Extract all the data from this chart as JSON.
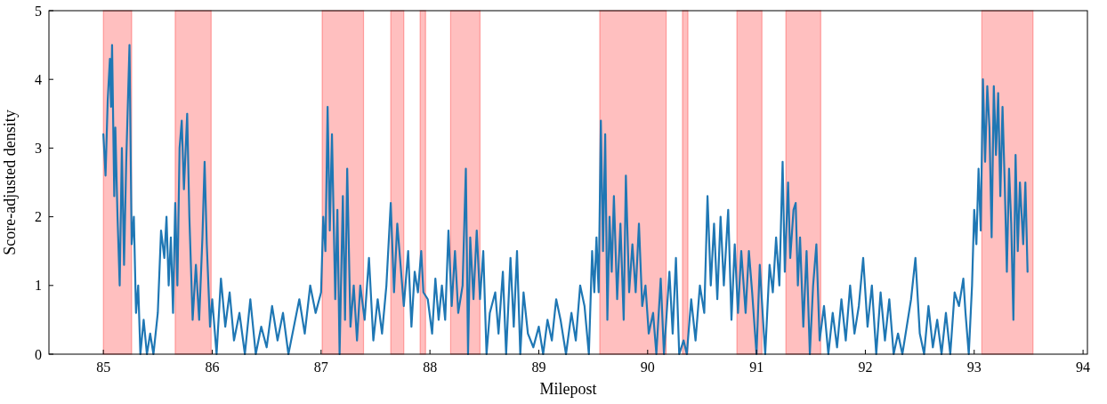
{
  "chart_data": {
    "type": "line",
    "xlabel": "Milepost",
    "ylabel": "Score-adjusted density",
    "xlim": [
      84.5,
      94.04
    ],
    "ylim": [
      0,
      5
    ],
    "xticks": [
      85,
      86,
      87,
      88,
      89,
      90,
      91,
      92,
      93,
      94
    ],
    "yticks": [
      0,
      1,
      2,
      3,
      4,
      5
    ],
    "grid": false,
    "marker": "none",
    "line_style": "solid",
    "series": [
      {
        "color": "#1f77b4",
        "x": [
          85.0,
          85.02,
          85.04,
          85.06,
          85.07,
          85.08,
          85.1,
          85.11,
          85.13,
          85.15,
          85.17,
          85.19,
          85.21,
          85.24,
          85.26,
          85.28,
          85.3,
          85.32,
          85.34,
          85.37,
          85.4,
          85.43,
          85.46,
          85.5,
          85.53,
          85.56,
          85.58,
          85.6,
          85.62,
          85.64,
          85.66,
          85.68,
          85.7,
          85.72,
          85.74,
          85.77,
          85.79,
          85.82,
          85.85,
          85.88,
          85.91,
          85.93,
          85.95,
          85.98,
          86.0,
          86.04,
          86.08,
          86.12,
          86.16,
          86.2,
          86.25,
          86.3,
          86.35,
          86.4,
          86.45,
          86.5,
          86.55,
          86.6,
          86.65,
          86.7,
          86.75,
          86.8,
          86.85,
          86.9,
          86.95,
          87.0,
          87.02,
          87.04,
          87.06,
          87.08,
          87.1,
          87.13,
          87.15,
          87.17,
          87.2,
          87.22,
          87.24,
          87.27,
          87.3,
          87.33,
          87.36,
          87.4,
          87.44,
          87.48,
          87.52,
          87.56,
          87.6,
          87.64,
          87.67,
          87.7,
          87.73,
          87.76,
          87.8,
          87.83,
          87.86,
          87.89,
          87.92,
          87.94,
          87.98,
          88.02,
          88.05,
          88.08,
          88.11,
          88.14,
          88.17,
          88.2,
          88.23,
          88.26,
          88.3,
          88.33,
          88.35,
          88.37,
          88.4,
          88.43,
          88.46,
          88.49,
          88.52,
          88.55,
          88.6,
          88.63,
          88.67,
          88.7,
          88.74,
          88.77,
          88.8,
          88.83,
          88.86,
          88.9,
          88.95,
          89.0,
          89.04,
          89.08,
          89.12,
          89.16,
          89.2,
          89.25,
          89.3,
          89.34,
          89.38,
          89.42,
          89.46,
          89.49,
          89.51,
          89.53,
          89.55,
          89.57,
          89.59,
          89.61,
          89.63,
          89.65,
          89.67,
          89.69,
          89.72,
          89.75,
          89.78,
          89.8,
          89.83,
          89.86,
          89.89,
          89.92,
          89.95,
          89.98,
          90.01,
          90.05,
          90.08,
          90.12,
          90.15,
          90.2,
          90.23,
          90.26,
          90.29,
          90.33,
          90.36,
          90.4,
          90.44,
          90.48,
          90.52,
          90.55,
          90.58,
          90.61,
          90.64,
          90.67,
          90.7,
          90.74,
          90.77,
          90.8,
          90.83,
          90.86,
          90.9,
          90.93,
          90.96,
          91.0,
          91.03,
          91.06,
          91.08,
          91.12,
          91.15,
          91.18,
          91.21,
          91.24,
          91.26,
          91.29,
          91.31,
          91.34,
          91.36,
          91.38,
          91.4,
          91.43,
          91.46,
          91.49,
          91.52,
          91.55,
          91.58,
          91.62,
          91.66,
          91.7,
          91.74,
          91.78,
          91.82,
          91.86,
          91.9,
          91.94,
          91.98,
          92.02,
          92.06,
          92.1,
          92.14,
          92.18,
          92.22,
          92.26,
          92.3,
          92.34,
          92.38,
          92.42,
          92.46,
          92.5,
          92.54,
          92.58,
          92.62,
          92.66,
          92.7,
          92.74,
          92.78,
          92.82,
          92.86,
          92.9,
          92.92,
          92.95,
          92.98,
          93.0,
          93.02,
          93.04,
          93.06,
          93.08,
          93.1,
          93.12,
          93.14,
          93.16,
          93.18,
          93.2,
          93.22,
          93.24,
          93.26,
          93.28,
          93.3,
          93.32,
          93.34,
          93.36,
          93.38,
          93.4,
          93.42,
          93.45,
          93.47,
          93.49
        ],
        "values": [
          3.2,
          2.6,
          3.7,
          4.3,
          3.6,
          4.5,
          2.3,
          3.3,
          2.0,
          1.0,
          3.0,
          1.3,
          2.8,
          4.5,
          1.6,
          2.0,
          0.6,
          1.0,
          0.0,
          0.5,
          0.0,
          0.3,
          0.0,
          0.6,
          1.8,
          1.4,
          2.0,
          1.0,
          1.7,
          0.6,
          2.2,
          1.0,
          3.0,
          3.4,
          2.4,
          3.5,
          2.0,
          0.5,
          1.3,
          0.5,
          1.7,
          2.8,
          1.6,
          0.4,
          0.8,
          0.0,
          1.1,
          0.4,
          0.9,
          0.2,
          0.6,
          0.0,
          0.8,
          0.0,
          0.4,
          0.1,
          0.7,
          0.2,
          0.6,
          0.0,
          0.4,
          0.8,
          0.3,
          1.0,
          0.6,
          0.9,
          2.0,
          1.5,
          3.6,
          1.8,
          3.2,
          0.8,
          2.1,
          0.0,
          2.3,
          0.5,
          2.7,
          0.4,
          1.0,
          0.2,
          1.0,
          0.5,
          1.4,
          0.2,
          0.8,
          0.3,
          1.0,
          2.2,
          0.9,
          1.9,
          1.3,
          0.7,
          1.5,
          0.4,
          1.2,
          0.9,
          1.5,
          0.9,
          0.8,
          0.3,
          1.1,
          0.5,
          1.0,
          0.5,
          1.8,
          0.7,
          1.5,
          0.6,
          1.0,
          2.7,
          0.0,
          1.7,
          0.8,
          1.8,
          0.8,
          1.5,
          0.0,
          0.6,
          0.9,
          0.3,
          1.2,
          0.0,
          1.4,
          0.4,
          1.5,
          0.0,
          0.9,
          0.3,
          0.1,
          0.4,
          0.0,
          0.5,
          0.2,
          0.8,
          0.5,
          0.0,
          0.6,
          0.2,
          1.0,
          0.7,
          0.0,
          1.5,
          0.9,
          1.7,
          0.9,
          3.4,
          1.5,
          3.2,
          0.5,
          2.0,
          1.2,
          2.3,
          0.8,
          1.9,
          0.5,
          2.6,
          0.9,
          1.6,
          0.9,
          1.9,
          0.7,
          1.0,
          0.3,
          0.6,
          0.0,
          1.1,
          0.0,
          1.2,
          0.3,
          1.4,
          0.0,
          0.2,
          0.0,
          0.8,
          0.2,
          1.0,
          0.6,
          2.3,
          1.0,
          1.9,
          0.8,
          2.0,
          1.0,
          2.1,
          0.5,
          1.6,
          0.6,
          1.5,
          0.6,
          1.5,
          0.9,
          0.0,
          1.3,
          0.5,
          0.0,
          1.3,
          0.9,
          1.7,
          1.0,
          2.8,
          1.2,
          2.5,
          1.4,
          2.1,
          2.2,
          1.0,
          1.7,
          0.4,
          1.5,
          0.0,
          1.0,
          1.6,
          0.2,
          0.7,
          0.0,
          0.6,
          0.1,
          0.8,
          0.2,
          1.0,
          0.3,
          0.7,
          1.4,
          0.4,
          1.0,
          0.0,
          0.9,
          0.2,
          0.8,
          0.0,
          0.3,
          0.0,
          0.4,
          0.8,
          1.4,
          0.3,
          0.0,
          0.7,
          0.1,
          0.5,
          0.0,
          0.6,
          0.0,
          0.9,
          0.7,
          1.1,
          0.6,
          0.0,
          1.0,
          2.1,
          1.6,
          2.7,
          1.8,
          4.0,
          2.8,
          3.9,
          3.3,
          1.7,
          3.9,
          2.9,
          3.8,
          2.3,
          3.6,
          2.5,
          1.2,
          2.7,
          1.9,
          0.5,
          2.9,
          1.5,
          2.5,
          1.6,
          2.5,
          1.2
        ]
      }
    ],
    "bands": [
      {
        "axis": "x",
        "from": 85.0,
        "to": 85.26,
        "color": "#ff0000"
      },
      {
        "axis": "x",
        "from": 85.66,
        "to": 85.99,
        "color": "#ff0000"
      },
      {
        "axis": "x",
        "from": 87.01,
        "to": 87.39,
        "color": "#ff0000"
      },
      {
        "axis": "x",
        "from": 87.64,
        "to": 87.76,
        "color": "#ff0000"
      },
      {
        "axis": "x",
        "from": 87.91,
        "to": 87.96,
        "color": "#ff0000"
      },
      {
        "axis": "x",
        "from": 88.19,
        "to": 88.46,
        "color": "#ff0000"
      },
      {
        "axis": "x",
        "from": 89.56,
        "to": 90.17,
        "color": "#ff0000"
      },
      {
        "axis": "x",
        "from": 90.32,
        "to": 90.37,
        "color": "#ff0000"
      },
      {
        "axis": "x",
        "from": 90.82,
        "to": 91.05,
        "color": "#ff0000"
      },
      {
        "axis": "x",
        "from": 91.27,
        "to": 91.59,
        "color": "#ff0000"
      },
      {
        "axis": "x",
        "from": 93.07,
        "to": 93.54,
        "color": "#ff0000"
      }
    ]
  }
}
